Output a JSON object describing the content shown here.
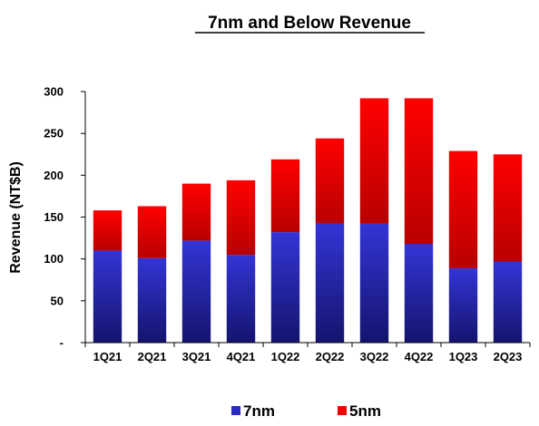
{
  "chart_data": {
    "type": "bar",
    "stacked": true,
    "title": "7nm and Below Revenue",
    "ylabel": "Revenue (NT$B)",
    "xlabel": "",
    "ylim": [
      0,
      300
    ],
    "yticks": [
      0,
      50,
      100,
      150,
      200,
      250,
      300
    ],
    "ytick_labels": [
      "-",
      "50",
      "100",
      "150",
      "200",
      "250",
      "300"
    ],
    "categories": [
      "1Q21",
      "2Q21",
      "3Q21",
      "4Q21",
      "1Q22",
      "2Q22",
      "3Q22",
      "4Q22",
      "1Q23",
      "2Q23"
    ],
    "series": [
      {
        "name": "7nm",
        "color": "#2b2bc4",
        "values": [
          110,
          101,
          122,
          105,
          132,
          143,
          142,
          118,
          89,
          97
        ]
      },
      {
        "name": "5nm",
        "color": "#f00000",
        "values": [
          48,
          62,
          68,
          89,
          87,
          101,
          150,
          174,
          140,
          128
        ]
      }
    ],
    "legend_position": "bottom",
    "grid": false
  }
}
